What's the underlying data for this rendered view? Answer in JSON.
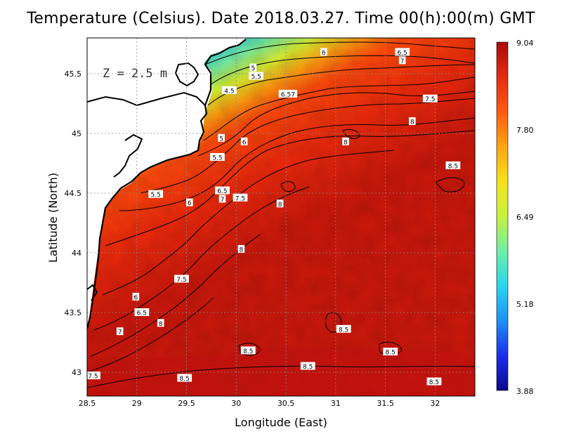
{
  "title": "Temperature (Celsius). Date 2018.03.27. Time 00(h):00(m) GMT",
  "depth_label": "Z = 2.5 m",
  "x_axis": {
    "label": "Longitude (East)",
    "ticks": [
      "28.5",
      "29",
      "29.5",
      "30",
      "30.5",
      "31",
      "31.5",
      "32"
    ],
    "range": [
      28.5,
      32.4
    ]
  },
  "y_axis": {
    "label": "Latitude (North)",
    "ticks": [
      "43",
      "43.5",
      "44",
      "44.5",
      "45",
      "45.5"
    ],
    "range": [
      42.8,
      45.8
    ]
  },
  "colorbar": {
    "labels": [
      "9.04",
      "7.80",
      "6.49",
      "5.18",
      "3.88"
    ],
    "min": 3.88,
    "max": 9.04,
    "colors": [
      "#0a0a8c",
      "#1a2ef0",
      "#1e90f5",
      "#28d6ee",
      "#6ef0a6",
      "#c6f23c",
      "#f6e21a",
      "#ffa412",
      "#ff5a10",
      "#e62a10",
      "#aa0a0a"
    ]
  },
  "contour_labels": [
    {
      "text": "6",
      "lon": 30.88,
      "lat": 45.68
    },
    {
      "text": "6.5",
      "lon": 31.67,
      "lat": 45.68
    },
    {
      "text": "7",
      "lon": 31.67,
      "lat": 45.61
    },
    {
      "text": "5",
      "lon": 30.17,
      "lat": 45.55
    },
    {
      "text": "5.5",
      "lon": 30.2,
      "lat": 45.48
    },
    {
      "text": "4.5",
      "lon": 29.93,
      "lat": 45.36
    },
    {
      "text": "6.57",
      "lon": 30.52,
      "lat": 45.33
    },
    {
      "text": "7.5",
      "lon": 31.95,
      "lat": 45.29
    },
    {
      "text": "8",
      "lon": 31.77,
      "lat": 45.1
    },
    {
      "text": "5",
      "lon": 29.85,
      "lat": 44.96
    },
    {
      "text": "6",
      "lon": 30.08,
      "lat": 44.93
    },
    {
      "text": "8",
      "lon": 31.1,
      "lat": 44.93
    },
    {
      "text": "5.5",
      "lon": 29.81,
      "lat": 44.8
    },
    {
      "text": "8.5",
      "lon": 32.18,
      "lat": 44.73
    },
    {
      "text": "6.5",
      "lon": 29.86,
      "lat": 44.52
    },
    {
      "text": "5.5",
      "lon": 29.19,
      "lat": 44.49
    },
    {
      "text": "7",
      "lon": 29.86,
      "lat": 44.45
    },
    {
      "text": "7.5",
      "lon": 30.04,
      "lat": 44.46
    },
    {
      "text": "6",
      "lon": 29.53,
      "lat": 44.42
    },
    {
      "text": "8",
      "lon": 30.44,
      "lat": 44.41
    },
    {
      "text": "8",
      "lon": 30.05,
      "lat": 44.03
    },
    {
      "text": "7.5",
      "lon": 29.45,
      "lat": 43.78
    },
    {
      "text": "6",
      "lon": 28.99,
      "lat": 43.63
    },
    {
      "text": "6.5",
      "lon": 29.05,
      "lat": 43.5
    },
    {
      "text": "8",
      "lon": 29.24,
      "lat": 43.41
    },
    {
      "text": "7",
      "lon": 28.83,
      "lat": 43.34
    },
    {
      "text": "8.5",
      "lon": 31.08,
      "lat": 43.36
    },
    {
      "text": "8.5",
      "lon": 30.12,
      "lat": 43.18
    },
    {
      "text": "8.5",
      "lon": 31.55,
      "lat": 43.17
    },
    {
      "text": "8.5",
      "lon": 30.72,
      "lat": 43.05
    },
    {
      "text": "7.5",
      "lon": 28.56,
      "lat": 42.97
    },
    {
      "text": "8.5",
      "lon": 29.48,
      "lat": 42.95
    },
    {
      "text": "8.5",
      "lon": 31.99,
      "lat": 42.92
    }
  ]
}
